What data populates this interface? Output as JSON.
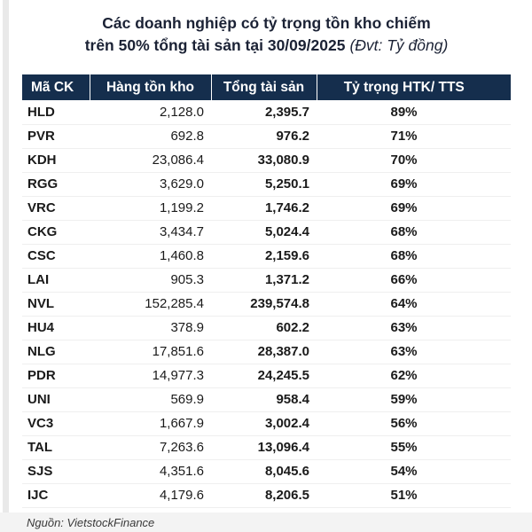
{
  "title": {
    "line1": "Các doanh nghiệp có tỷ trọng tồn kho chiếm",
    "line2": "trên 50% tổng tài sản tại 30/09/2025",
    "unit": "(Đvt: Tỷ đồng)"
  },
  "source": "Nguồn: VietstockFinance",
  "colors": {
    "header_bg": "#152E4D",
    "header_text": "#FFFFFF",
    "title_text": "#1B2235",
    "row_border": "#EFEFEF",
    "footer_band": "#F3F3F3",
    "left_gutter": "#E9E9E9"
  },
  "chart_data": {
    "type": "table",
    "title": "Các doanh nghiệp có tỷ trọng tồn kho chiếm trên 50% tổng tài sản tại 30/09/2025",
    "unit": "Đvt: Tỷ đồng",
    "columns": [
      "Mã CK",
      "Hàng tồn kho",
      "Tổng tài sản",
      "Tỷ trọng HTK/ TTS"
    ],
    "rows": [
      [
        "HLD",
        "2,128.0",
        "2,395.7",
        "89%"
      ],
      [
        "PVR",
        "692.8",
        "976.2",
        "71%"
      ],
      [
        "KDH",
        "23,086.4",
        "33,080.9",
        "70%"
      ],
      [
        "RGG",
        "3,629.0",
        "5,250.1",
        "69%"
      ],
      [
        "VRC",
        "1,199.2",
        "1,746.2",
        "69%"
      ],
      [
        "CKG",
        "3,434.7",
        "5,024.4",
        "68%"
      ],
      [
        "CSC",
        "1,460.8",
        "2,159.6",
        "68%"
      ],
      [
        "LAI",
        "905.3",
        "1,371.2",
        "66%"
      ],
      [
        "NVL",
        "152,285.4",
        "239,574.8",
        "64%"
      ],
      [
        "HU4",
        "378.9",
        "602.2",
        "63%"
      ],
      [
        "NLG",
        "17,851.6",
        "28,387.0",
        "63%"
      ],
      [
        "PDR",
        "14,977.3",
        "24,245.5",
        "62%"
      ],
      [
        "UNI",
        "569.9",
        "958.4",
        "59%"
      ],
      [
        "VC3",
        "1,667.9",
        "3,002.4",
        "56%"
      ],
      [
        "TAL",
        "7,263.6",
        "13,096.4",
        "55%"
      ],
      [
        "SJS",
        "4,351.6",
        "8,045.6",
        "54%"
      ],
      [
        "IJC",
        "4,179.6",
        "8,206.5",
        "51%"
      ]
    ],
    "source": "Nguồn: VietstockFinance"
  }
}
